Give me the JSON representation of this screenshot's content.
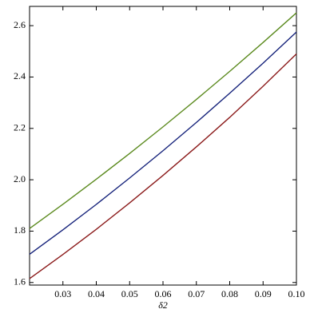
{
  "chart_data": {
    "type": "line",
    "xlabel": "δ2",
    "x": [
      0.02,
      0.03,
      0.04,
      0.05,
      0.06,
      0.07,
      0.08,
      0.09,
      0.1
    ],
    "series": [
      {
        "color": "#5b8a1e",
        "values": [
          1.81,
          1.9045,
          2.002,
          2.1025,
          2.206,
          2.3125,
          2.422,
          2.5345,
          2.65
        ]
      },
      {
        "color": "#14217a",
        "values": [
          1.71,
          1.805,
          1.904,
          2.007,
          2.113,
          2.223,
          2.337,
          2.454,
          2.575
        ]
      },
      {
        "color": "#8b1a1a",
        "values": [
          1.615,
          1.709,
          1.807,
          1.91,
          2.017,
          2.128,
          2.243,
          2.364,
          2.49
        ]
      }
    ],
    "xlim": [
      0.02,
      0.1
    ],
    "ylim": [
      1.59,
      2.675
    ],
    "xticks": [
      0.03,
      0.04,
      0.05,
      0.06,
      0.07,
      0.08,
      0.09,
      {
        "value": 0.1,
        "label": "0.10"
      }
    ],
    "yticks": [
      1.6,
      1.8,
      {
        "value": 2,
        "label": "2.0"
      },
      2.2,
      2.4,
      2.6
    ],
    "grid": false
  }
}
